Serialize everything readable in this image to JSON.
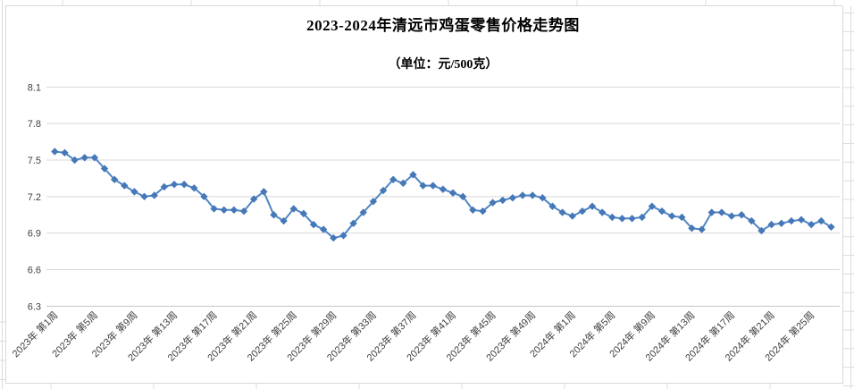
{
  "chart": {
    "frame_border_color": "#D9D9D9",
    "excel_grid_color": "#DCDCDC",
    "background": "#FFFFFF"
  },
  "chart_data": {
    "type": "line",
    "title": "2023-2024年清远市鸡蛋零售价格走势图",
    "subtitle": "（单位：元/500克）",
    "series_name": "鸡蛋零售价格",
    "unit": "元/500克",
    "values": [
      7.57,
      7.56,
      7.5,
      7.52,
      7.52,
      7.43,
      7.34,
      7.29,
      7.24,
      7.2,
      7.21,
      7.28,
      7.3,
      7.3,
      7.27,
      7.2,
      7.1,
      7.09,
      7.09,
      7.08,
      7.18,
      7.24,
      7.05,
      7.0,
      7.1,
      7.06,
      6.97,
      6.93,
      6.86,
      6.88,
      6.98,
      7.07,
      7.16,
      7.25,
      7.34,
      7.31,
      7.38,
      7.29,
      7.29,
      7.26,
      7.23,
      7.2,
      7.09,
      7.08,
      7.15,
      7.17,
      7.19,
      7.21,
      7.21,
      7.19,
      7.12,
      7.07,
      7.04,
      7.08,
      7.12,
      7.07,
      7.03,
      7.02,
      7.02,
      7.03,
      7.12,
      7.08,
      7.04,
      7.03,
      6.94,
      6.93,
      7.07,
      7.07,
      7.04,
      7.05,
      7.0,
      6.92,
      6.97,
      6.98,
      7.0,
      7.01,
      6.97,
      7.0,
      6.95
    ],
    "n_points": 79,
    "x_tick_labels": [
      "2023年 第1周",
      "2023年 第5周",
      "2023年 第9周",
      "2023年 第13周",
      "2023年 第17周",
      "2023年 第21周",
      "2023年 第25周",
      "2023年 第29周",
      "2023年 第33周",
      "2023年 第37周",
      "2023年 第41周",
      "2023年 第45周",
      "2023年 第49周",
      "2024年 第1周",
      "2024年 第5周",
      "2024年 第9周",
      "2024年 第13周",
      "2024年 第17周",
      "2024年 第21周",
      "2024年 第25周"
    ],
    "x_tick_indices": [
      0,
      4,
      8,
      12,
      16,
      20,
      24,
      28,
      32,
      36,
      40,
      44,
      48,
      52,
      56,
      60,
      64,
      68,
      72,
      76
    ],
    "y_ticks": [
      8.1,
      7.8,
      7.5,
      7.2,
      6.9,
      6.6,
      6.3
    ],
    "ylim": [
      6.3,
      8.1
    ],
    "grid": true,
    "legend": false,
    "marker": "diamond",
    "line_color": "#4E86C4",
    "marker_color": "#4678B8",
    "grid_color": "#D9D9D9",
    "axis_text_color": "#3F3F3F"
  }
}
